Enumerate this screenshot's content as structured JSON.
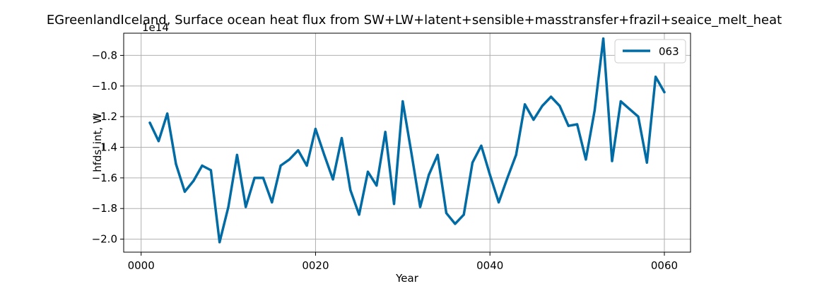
{
  "chart_data": {
    "type": "line",
    "title": "EGreenlandIceland, Surface ocean heat flux from SW+LW+latent+sensible+masstransfer+frazil+seaice_melt_heat",
    "xlabel": "Year",
    "ylabel": "hfds_int, W",
    "y_offset_label": "1e14",
    "xlim": [
      -2,
      63
    ],
    "ylim": [
      -2.085,
      -0.655
    ],
    "xticks": [
      0,
      20,
      40,
      60
    ],
    "xtick_labels": [
      "0000",
      "0020",
      "0040",
      "0060"
    ],
    "yticks": [
      -2.0,
      -1.8,
      -1.6,
      -1.4,
      -1.2,
      -1.0,
      -0.8
    ],
    "ytick_labels": [
      "−2.0",
      "−1.8",
      "−1.6",
      "−1.4",
      "−1.2",
      "−1.0",
      "−0.8"
    ],
    "grid": true,
    "legend_position": "top-right",
    "series": [
      {
        "name": "063",
        "color": "#006ba4",
        "x": [
          1,
          2,
          3,
          4,
          5,
          6,
          7,
          8,
          9,
          10,
          11,
          12,
          13,
          14,
          15,
          16,
          17,
          18,
          19,
          20,
          21,
          22,
          23,
          24,
          25,
          26,
          27,
          28,
          29,
          30,
          31,
          32,
          33,
          34,
          35,
          36,
          37,
          38,
          39,
          40,
          41,
          42,
          43,
          44,
          45,
          46,
          47,
          48,
          49,
          50,
          51,
          52,
          53,
          54,
          55,
          56,
          57,
          58,
          59,
          60
        ],
        "values": [
          -1.24,
          -1.36,
          -1.18,
          -1.51,
          -1.69,
          -1.62,
          -1.52,
          -1.55,
          -2.02,
          -1.79,
          -1.45,
          -1.79,
          -1.6,
          -1.6,
          -1.76,
          -1.52,
          -1.48,
          -1.42,
          -1.52,
          -1.28,
          -1.45,
          -1.61,
          -1.34,
          -1.68,
          -1.84,
          -1.56,
          -1.65,
          -1.3,
          -1.77,
          -1.1,
          -1.44,
          -1.79,
          -1.58,
          -1.45,
          -1.83,
          -1.9,
          -1.84,
          -1.5,
          -1.39,
          -1.58,
          -1.76,
          -1.6,
          -1.45,
          -1.12,
          -1.22,
          -1.13,
          -1.07,
          -1.13,
          -1.26,
          -1.25,
          -1.48,
          -1.16,
          -0.69,
          -1.49,
          -1.1,
          -1.15,
          -1.2,
          -1.5,
          -0.94,
          -1.04
        ]
      }
    ]
  }
}
